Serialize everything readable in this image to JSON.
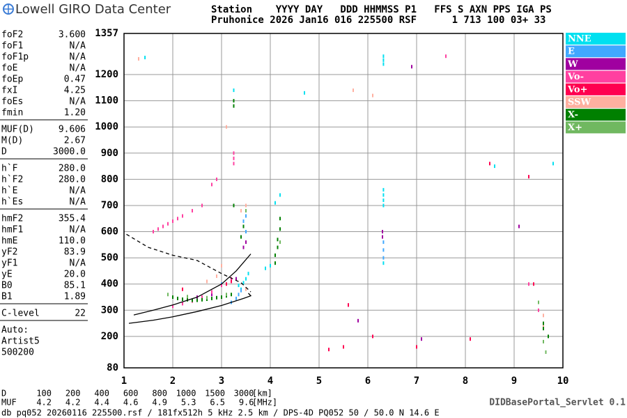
{
  "header": {
    "logo": "Lowell GIRO Data Center",
    "line1": "Station    YYYY DAY   DDD HHMMSS P1   FFS S AXN PPS IGA PS",
    "line2": "Pruhonice 2026 Jan16 016 225500 RSF      1 713 100 03+ 33"
  },
  "parameters": {
    "groups": [
      [
        {
          "name": "foF2",
          "value": "3.600"
        },
        {
          "name": "foF1",
          "value": "N/A"
        },
        {
          "name": "foF1p",
          "value": "N/A"
        },
        {
          "name": "foE",
          "value": "N/A"
        },
        {
          "name": "foEp",
          "value": "0.47"
        },
        {
          "name": "fxI",
          "value": "4.25"
        },
        {
          "name": "foEs",
          "value": "N/A"
        },
        {
          "name": "fmin",
          "value": "1.20"
        }
      ],
      [
        {
          "name": "MUF(D)",
          "value": "9.606"
        },
        {
          "name": "M(D)",
          "value": "2.67"
        },
        {
          "name": "D",
          "value": "3000.0"
        }
      ],
      [
        {
          "name": "h`F",
          "value": "280.0"
        },
        {
          "name": "h`F2",
          "value": "280.0"
        },
        {
          "name": "h`E",
          "value": "N/A"
        },
        {
          "name": "h`Es",
          "value": "N/A"
        }
      ],
      [
        {
          "name": "hmF2",
          "value": "355.4"
        },
        {
          "name": "hmF1",
          "value": "N/A"
        },
        {
          "name": "hmE",
          "value": "110.0"
        },
        {
          "name": "yF2",
          "value": "83.9"
        },
        {
          "name": "yF1",
          "value": "N/A"
        },
        {
          "name": "yE",
          "value": "20.0"
        },
        {
          "name": "B0",
          "value": "85.1"
        },
        {
          "name": "B1",
          "value": "1.89"
        }
      ],
      [
        {
          "name": "C-level",
          "value": "22"
        }
      ]
    ],
    "scaler": [
      "Auto:",
      "Artist5",
      "500200"
    ]
  },
  "chart_data": {
    "type": "scatter",
    "xlim": [
      1,
      10
    ],
    "xticks": [
      1,
      2,
      3,
      4,
      5,
      6,
      7,
      8,
      9,
      10
    ],
    "ylim": [
      80,
      1357
    ],
    "yticks": [
      80,
      200,
      300,
      400,
      500,
      600,
      700,
      800,
      900,
      1000,
      1100,
      1200,
      1357
    ],
    "grid": true,
    "series": [
      {
        "name": "NNE",
        "color": "#00e0f0",
        "x": [
          1.43,
          3.25,
          3.3,
          3.35,
          3.4,
          3.45,
          3.5,
          3.55,
          3.9,
          4.0,
          4.1,
          4.2,
          6.32,
          6.32,
          6.32,
          6.32,
          6.32,
          6.32,
          6.32,
          6.32,
          4.7,
          8.6,
          9.8
        ],
        "y": [
          1265,
          1140,
          420,
          395,
          380,
          405,
          420,
          440,
          460,
          470,
          710,
          740,
          1240,
          1255,
          1270,
          700,
          720,
          740,
          760,
          480,
          1130,
          850,
          860
        ]
      },
      {
        "name": "E",
        "color": "#40a8ff",
        "x": [
          3.0,
          3.2,
          3.3,
          3.35,
          3.4,
          3.45,
          3.45,
          3.5,
          3.5,
          6.32,
          6.32,
          6.32
        ],
        "y": [
          400,
          330,
          345,
          360,
          375,
          620,
          640,
          600,
          660,
          500,
          530,
          560
        ]
      },
      {
        "name": "W",
        "color": "#a000a0",
        "x": [
          2.5,
          2.8,
          3.3,
          3.45,
          3.5,
          5.6,
          5.8,
          6.3,
          6.3,
          6.9,
          7.1,
          9.1
        ],
        "y": [
          350,
          360,
          420,
          540,
          560,
          320,
          260,
          600,
          580,
          1230,
          190,
          620
        ]
      },
      {
        "name": "Vo-",
        "color": "#ff40a0",
        "x": [
          1.6,
          1.7,
          1.8,
          1.9,
          2.0,
          2.1,
          2.2,
          2.4,
          2.6,
          2.8,
          2.9,
          3.25,
          3.25,
          3.25,
          7.6,
          9.3,
          9.5,
          2.0,
          2.2,
          2.4,
          2.6,
          2.8,
          3.0,
          3.2
        ],
        "y": [
          600,
          610,
          620,
          630,
          640,
          650,
          660,
          680,
          700,
          780,
          800,
          860,
          880,
          900,
          1270,
          400,
          300,
          315,
          325,
          335,
          350,
          370,
          395,
          420
        ]
      },
      {
        "name": "Vo+",
        "color": "#ff0050",
        "x": [
          2.2,
          3.1,
          3.2,
          5.2,
          5.5,
          5.6,
          6.1,
          7.0,
          8.1,
          8.5,
          9.3,
          9.4
        ],
        "y": [
          380,
          400,
          410,
          150,
          160,
          320,
          200,
          160,
          190,
          860,
          810,
          400
        ]
      },
      {
        "name": "SSW",
        "color": "#ffb0a0",
        "x": [
          1.3,
          2.7,
          2.9,
          3.0,
          3.1,
          3.4,
          3.5,
          3.5,
          5.7,
          6.1,
          9.6,
          9.6
        ],
        "y": [
          1260,
          410,
          430,
          470,
          1000,
          680,
          700,
          380,
          1140,
          1120,
          280,
          240
        ]
      },
      {
        "name": "X-",
        "color": "#008000",
        "x": [
          2.0,
          2.1,
          2.2,
          2.3,
          2.4,
          2.5,
          2.6,
          2.7,
          2.8,
          2.9,
          3.0,
          3.1,
          3.2,
          3.25,
          3.25,
          3.25,
          3.4,
          3.45,
          4.1,
          4.1,
          4.15,
          4.15,
          4.2,
          4.2,
          9.6,
          9.6,
          9.7
        ],
        "y": [
          350,
          345,
          342,
          340,
          338,
          338,
          340,
          342,
          345,
          348,
          350,
          355,
          360,
          1080,
          1100,
          700,
          580,
          620,
          480,
          510,
          540,
          570,
          610,
          650,
          250,
          230,
          200
        ]
      },
      {
        "name": "X+",
        "color": "#70b860",
        "x": [
          1.9,
          2.3,
          2.7,
          3.1,
          3.5,
          4.2,
          9.5,
          9.6,
          9.65
        ],
        "y": [
          360,
          352,
          348,
          360,
          680,
          560,
          330,
          180,
          140
        ]
      }
    ],
    "curves": [
      {
        "color": "#000000",
        "dashed": false,
        "x": [
          1.2,
          1.6,
          2.0,
          2.5,
          3.0,
          3.3,
          3.6
        ],
        "y": [
          282,
          300,
          320,
          350,
          400,
          450,
          515
        ]
      },
      {
        "color": "#000000",
        "dashed": false,
        "x": [
          1.1,
          1.6,
          2.0,
          2.5,
          3.0,
          3.45,
          3.6,
          3.55
        ],
        "y": [
          250,
          262,
          275,
          295,
          318,
          345,
          355,
          365
        ]
      },
      {
        "color": "#000000",
        "dashed": true,
        "x": [
          1.05,
          1.5,
          2.0,
          2.5,
          3.0,
          3.4,
          3.6
        ],
        "y": [
          590,
          540,
          510,
          490,
          440,
          405,
          370
        ]
      }
    ]
  },
  "distance_table": {
    "d_label": "D",
    "d_values": [
      100,
      200,
      400,
      600,
      800,
      1000,
      1500,
      3000
    ],
    "d_unit": "[km]",
    "muf_label": "MUF",
    "muf_values": [
      4.2,
      4.2,
      4.4,
      4.6,
      4.9,
      5.3,
      6.5,
      9.6
    ],
    "muf_unit": "[MHz]"
  },
  "footer": {
    "file": "db pq052 20260116 225500.rsf / 181fx512h 5 kHz 2.5 km / DPS-4D PQ052 50 / 50.0 N 14.6 E",
    "servlet": "DIDBasePortal_Servlet 0.1"
  }
}
